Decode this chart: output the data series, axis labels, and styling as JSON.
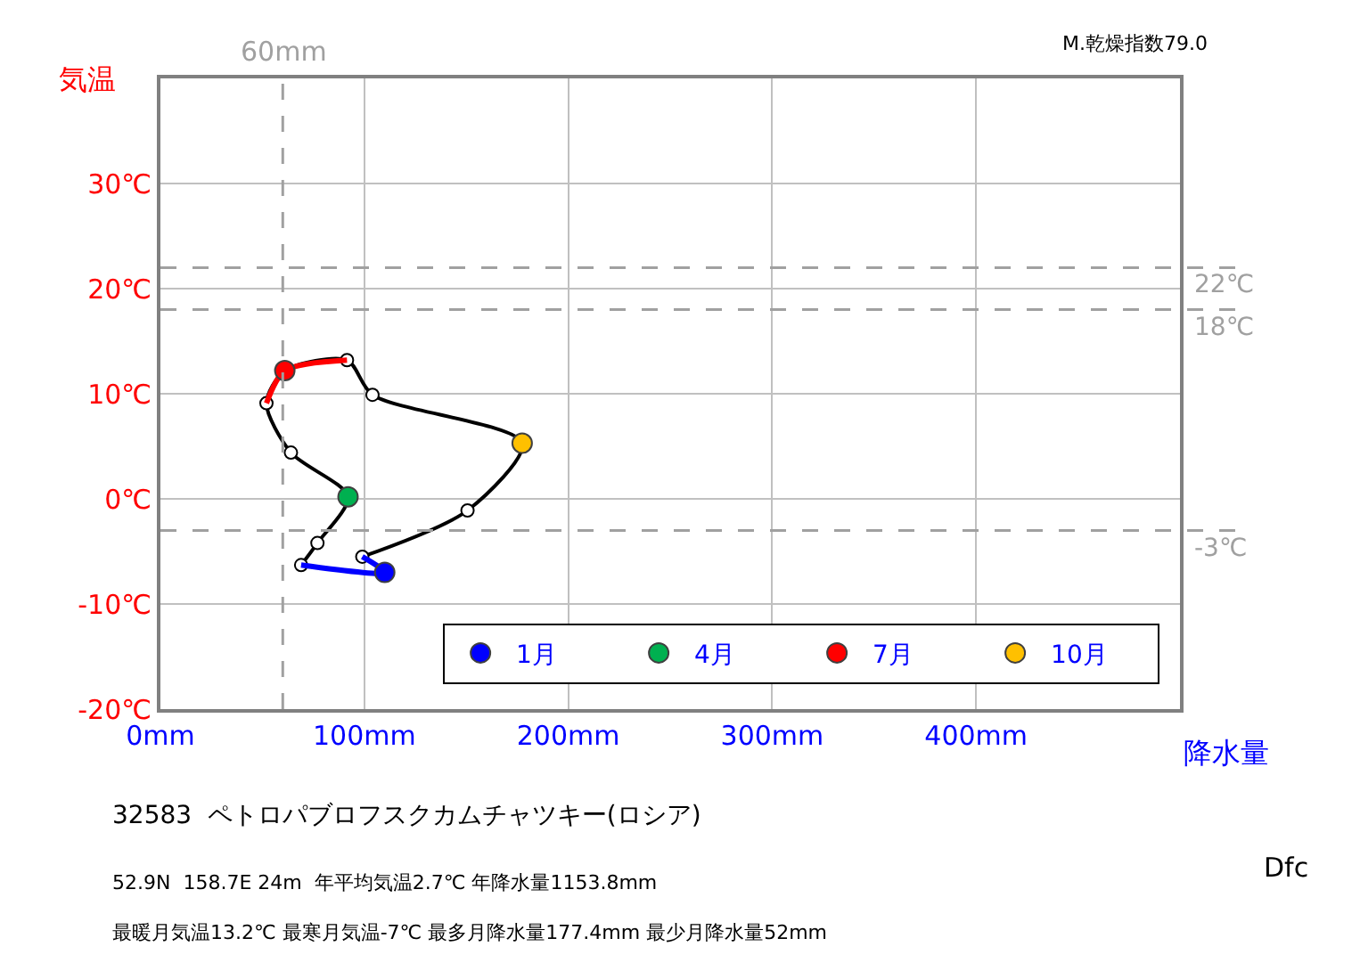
{
  "chart_data": {
    "type": "line",
    "xlabel": "降水量",
    "ylabel": "気温",
    "xlim": [
      0,
      500
    ],
    "ylim": [
      -20,
      40
    ],
    "xticks": [
      {
        "value": 0,
        "label": "0mm"
      },
      {
        "value": 100,
        "label": "100mm"
      },
      {
        "value": 200,
        "label": "200mm"
      },
      {
        "value": 300,
        "label": "300mm"
      },
      {
        "value": 400,
        "label": "400mm"
      }
    ],
    "yticks": [
      {
        "value": -20,
        "label": "-20℃"
      },
      {
        "value": -10,
        "label": "-10℃"
      },
      {
        "value": 0,
        "label": "0℃"
      },
      {
        "value": 10,
        "label": "10℃"
      },
      {
        "value": 20,
        "label": "20℃"
      },
      {
        "value": 30,
        "label": "30℃"
      }
    ],
    "grid": true,
    "legend": "bottom right",
    "marker": "circle",
    "line_style": "solid",
    "series": [
      {
        "color": "#000000",
        "x": [
          69,
          77,
          92,
          64,
          52,
          61,
          91.5,
          104,
          177.4,
          150.6,
          99
        ],
        "values": [
          -6.3,
          -4.2,
          0.2,
          4.4,
          9.1,
          12.2,
          13.2,
          9.9,
          5.3,
          -1.1,
          -5.5
        ]
      },
      {
        "color": "#0000ff",
        "marker": "none",
        "x": [
          99,
          110,
          69
        ],
        "values": [
          -5.5,
          -7,
          -6.3
        ]
      },
      {
        "color": "#ff0000",
        "marker": "none",
        "x": [
          52,
          61,
          91.5
        ],
        "values": [
          9.1,
          12.2,
          13.2
        ]
      },
      {
        "type": "scatter",
        "name": "1月",
        "color": "#0000ff",
        "x": [
          110
        ],
        "values": [
          -7
        ]
      },
      {
        "type": "scatter",
        "name": "4月",
        "color": "#00b050",
        "x": [
          92
        ],
        "values": [
          0.2
        ]
      },
      {
        "type": "scatter",
        "name": "7月",
        "color": "#ff0000",
        "x": [
          61
        ],
        "values": [
          12.2
        ]
      },
      {
        "type": "scatter",
        "name": "10月",
        "color": "#ffc000",
        "x": [
          177.4
        ],
        "values": [
          5.3
        ]
      }
    ],
    "ref_lines": [
      {
        "axis": "y",
        "value": 22,
        "label": "22℃",
        "color": "#a0a0a0",
        "line_style": "dashed"
      },
      {
        "axis": "y",
        "value": 18,
        "label": "18℃",
        "color": "#a0a0a0",
        "line_style": "dashed"
      },
      {
        "axis": "y",
        "value": -3,
        "label": "-3℃",
        "color": "#a0a0a0",
        "line_style": "dashed"
      },
      {
        "axis": "x",
        "value": 60,
        "label": "60mm",
        "color": "#a0a0a0",
        "line_style": "dashed"
      }
    ],
    "annotations": [
      "M.乾燥指数79.0",
      "32583  ペトロパブロフスクカムチャツキー(ロシア)",
      "52.9N  158.7E 24m  年平均気温2.7℃ 年降水量1153.8mm",
      "最暖月気温13.2℃ 最寒月気温-7℃ 最多月降水量177.4mm 最少月降水量52mm",
      "Dfc"
    ]
  }
}
